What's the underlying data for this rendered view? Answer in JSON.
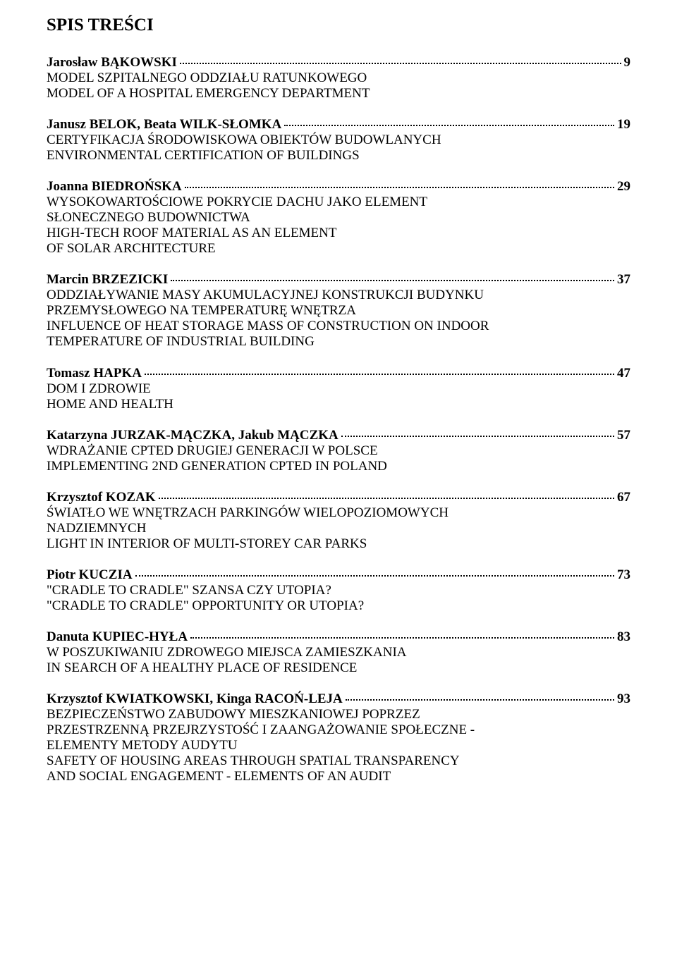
{
  "page": {
    "title": "SPIS TREŚCI",
    "background_color": "#ffffff",
    "text_color": "#000000",
    "font_family": "Times New Roman",
    "title_fontsize": 25,
    "body_fontsize": 19
  },
  "entries": [
    {
      "author": "Jarosław BĄKOWSKI",
      "page": "9",
      "lines": [
        "MODEL SZPITALNEGO ODDZIAŁU RATUNKOWEGO",
        "MODEL OF A HOSPITAL EMERGENCY DEPARTMENT"
      ]
    },
    {
      "author": "Janusz BELOK, Beata WILK-SŁOMKA",
      "page": "19",
      "lines": [
        "CERTYFIKACJA ŚRODOWISKOWA OBIEKTÓW BUDOWLANYCH",
        "ENVIRONMENTAL CERTIFICATION OF BUILDINGS"
      ]
    },
    {
      "author": "Joanna BIEDROŃSKA",
      "page": "29",
      "lines": [
        "WYSOKOWARTOŚCIOWE POKRYCIE DACHU JAKO ELEMENT",
        "SŁONECZNEGO BUDOWNICTWA",
        "HIGH-TECH ROOF MATERIAL AS AN ELEMENT",
        "OF SOLAR ARCHITECTURE"
      ]
    },
    {
      "author": "Marcin BRZEZICKI",
      "page": "37",
      "lines": [
        "ODDZIAŁYWANIE MASY AKUMULACYJNEJ KONSTRUKCJI BUDYNKU",
        "PRZEMYSŁOWEGO NA TEMPERATURĘ WNĘTRZA",
        "INFLUENCE OF HEAT STORAGE MASS OF CONSTRUCTION ON INDOOR",
        "TEMPERATURE OF INDUSTRIAL BUILDING"
      ]
    },
    {
      "author": "Tomasz HAPKA",
      "page": "47",
      "lines": [
        "DOM I ZDROWIE",
        "HOME AND HEALTH"
      ]
    },
    {
      "author": "Katarzyna JURZAK-MĄCZKA, Jakub MĄCZKA",
      "page": "57",
      "lines": [
        "WDRAŻANIE CPTED DRUGIEJ GENERACJI W POLSCE",
        "IMPLEMENTING 2ND GENERATION CPTED IN POLAND"
      ]
    },
    {
      "author": "Krzysztof KOZAK",
      "page": "67",
      "lines": [
        "ŚWIATŁO WE WNĘTRZACH PARKINGÓW WIELOPOZIOMOWYCH",
        "NADZIEMNYCH",
        "LIGHT IN INTERIOR OF MULTI-STOREY CAR PARKS"
      ]
    },
    {
      "author": "Piotr KUCZIA",
      "page": "73",
      "lines": [
        "\"CRADLE TO CRADLE\" SZANSA CZY UTOPIA?",
        "\"CRADLE TO CRADLE\" OPPORTUNITY OR UTOPIA?"
      ]
    },
    {
      "author": "Danuta KUPIEC-HYŁA",
      "page": "83",
      "lines": [
        "W POSZUKIWANIU ZDROWEGO MIEJSCA ZAMIESZKANIA",
        "IN SEARCH OF A HEALTHY PLACE OF RESIDENCE"
      ]
    },
    {
      "author": "Krzysztof KWIATKOWSKI, Kinga RACOŃ-LEJA",
      "page": "93",
      "lines": [
        "BEZPIECZEŃSTWO ZABUDOWY MIESZKANIOWEJ POPRZEZ",
        "PRZESTRZENNĄ PRZEJRZYSTOŚĆ  I ZAANGAŻOWANIE SPOŁECZNE -",
        "ELEMENTY METODY AUDYTU",
        "SAFETY OF HOUSING AREAS THROUGH SPATIAL TRANSPARENCY",
        "AND SOCIAL ENGAGEMENT - ELEMENTS OF AN AUDIT"
      ]
    }
  ]
}
